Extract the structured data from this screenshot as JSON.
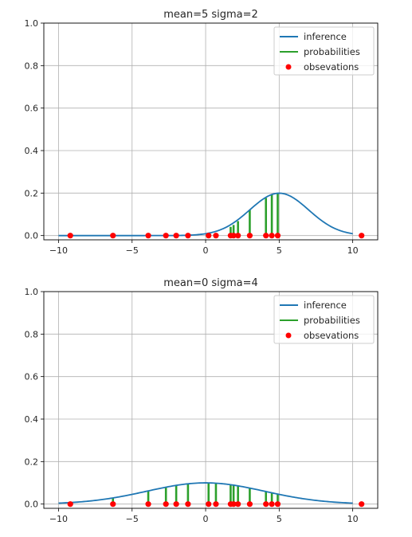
{
  "chart_data": [
    {
      "type": "line",
      "title": "mean=5 sigma=2",
      "mean": 5,
      "sigma": 2,
      "xlim": [
        -11,
        11.7
      ],
      "ylim": [
        -0.02,
        1.0
      ],
      "xticks": [
        -10,
        -5,
        0,
        5,
        10
      ],
      "xtick_labels": [
        "−10",
        "−5",
        "0",
        "5",
        "10"
      ],
      "yticks": [
        0.0,
        0.2,
        0.4,
        0.6,
        0.8,
        1.0
      ],
      "ytick_labels": [
        "0.0",
        "0.2",
        "0.4",
        "0.6",
        "0.8",
        "1.0"
      ],
      "grid": true,
      "legend_position": "top-right",
      "series": [
        {
          "name": "inference",
          "kind": "line",
          "color": "#1f77b4",
          "x_range": [
            -10,
            10
          ],
          "y_formula": "normal pdf with mean 5, sigma 2"
        },
        {
          "name": "probabilities",
          "kind": "stems",
          "color": "#2ca02c",
          "x": [
            -9.2,
            -6.3,
            -3.9,
            -2.7,
            -2.0,
            -1.2,
            0.2,
            0.7,
            1.7,
            1.9,
            2.2,
            3.0,
            4.1,
            4.5,
            4.9
          ],
          "y": [
            0.0,
            0.0,
            0.0,
            0.0,
            0.0,
            0.0,
            0.004,
            0.008,
            0.041,
            0.05,
            0.068,
            0.121,
            0.177,
            0.194,
            0.199
          ]
        },
        {
          "name": "obsevations",
          "kind": "scatter",
          "color": "#ff0000",
          "x": [
            -9.2,
            -6.3,
            -3.9,
            -2.7,
            -2.0,
            -1.2,
            0.2,
            0.7,
            1.7,
            1.9,
            2.2,
            3.0,
            4.1,
            4.5,
            4.9,
            10.6
          ],
          "y": [
            0,
            0,
            0,
            0,
            0,
            0,
            0,
            0,
            0,
            0,
            0,
            0,
            0,
            0,
            0,
            0
          ]
        }
      ]
    },
    {
      "type": "line",
      "title": "mean=0 sigma=4",
      "mean": 0,
      "sigma": 4,
      "xlim": [
        -11,
        11.7
      ],
      "ylim": [
        -0.02,
        1.0
      ],
      "xticks": [
        -10,
        -5,
        0,
        5,
        10
      ],
      "xtick_labels": [
        "−10",
        "−5",
        "0",
        "5",
        "10"
      ],
      "yticks": [
        0.0,
        0.2,
        0.4,
        0.6,
        0.8,
        1.0
      ],
      "ytick_labels": [
        "0.0",
        "0.2",
        "0.4",
        "0.6",
        "0.8",
        "1.0"
      ],
      "grid": true,
      "legend_position": "top-right",
      "series": [
        {
          "name": "inference",
          "kind": "line",
          "color": "#1f77b4",
          "x_range": [
            -10,
            10
          ],
          "y_formula": "normal pdf with mean 0, sigma 4"
        },
        {
          "name": "probabilities",
          "kind": "stems",
          "color": "#2ca02c",
          "x": [
            -9.2,
            -6.3,
            -3.9,
            -2.7,
            -2.0,
            -1.2,
            0.2,
            0.7,
            1.7,
            1.9,
            2.2,
            3.0,
            4.1,
            4.5,
            4.9
          ],
          "y": [
            0.0,
            0.029,
            0.062,
            0.079,
            0.088,
            0.095,
            0.1,
            0.098,
            0.091,
            0.089,
            0.086,
            0.075,
            0.059,
            0.053,
            0.047
          ]
        },
        {
          "name": "obsevations",
          "kind": "scatter",
          "color": "#ff0000",
          "x": [
            -9.2,
            -6.3,
            -3.9,
            -2.7,
            -2.0,
            -1.2,
            0.2,
            0.7,
            1.7,
            1.9,
            2.2,
            3.0,
            4.1,
            4.5,
            4.9,
            10.6
          ],
          "y": [
            0,
            0,
            0,
            0,
            0,
            0,
            0,
            0,
            0,
            0,
            0,
            0,
            0,
            0,
            0,
            0
          ]
        }
      ]
    }
  ]
}
